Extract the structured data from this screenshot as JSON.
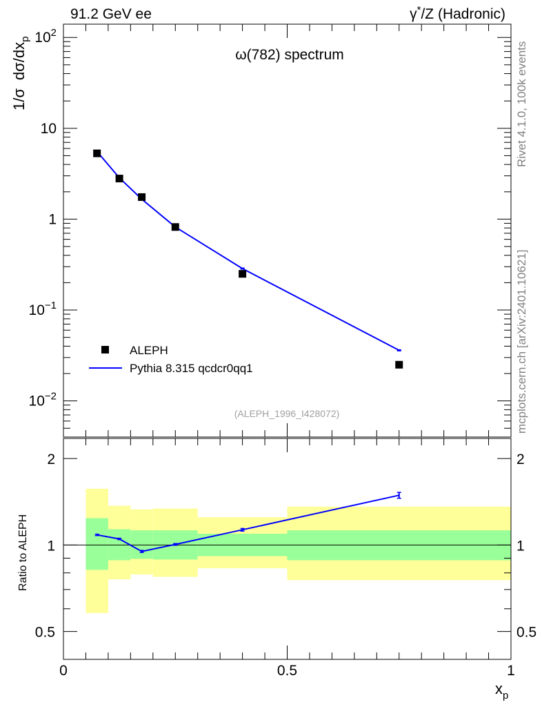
{
  "header": {
    "left": "91.2 GeV ee",
    "right_prefix": "γ",
    "right_sup": "*",
    "right_suffix": "/Z (Hadronic)"
  },
  "side_labels": {
    "rivet": "Rivet 4.1.0,  100k events",
    "mcplots": "mcplots.cern.ch [arXiv:2401.10621]"
  },
  "colors": {
    "mc": "#0000ff",
    "data": "#000000",
    "band_inner": "#99ff99",
    "band_outer": "#ffff99",
    "ref_text": "#a0a0a0"
  },
  "chart_data": [
    {
      "type": "scatter",
      "panel": "main",
      "title": "ω(782) spectrum",
      "ylabel": "1/σ dσ/dx_p",
      "ylabel_parts": {
        "a": "1/σ",
        "b": "dσ/dx",
        "sub": "p"
      },
      "xlabel": "",
      "yscale": "log",
      "ylim": [
        0.004,
        140
      ],
      "xlim": [
        0,
        1
      ],
      "yticks": [
        {
          "v": 100,
          "base": "10",
          "exp": "2"
        },
        {
          "v": 10,
          "base": "10",
          "exp": ""
        },
        {
          "v": 1,
          "base": "1",
          "exp": ""
        },
        {
          "v": 0.1,
          "base": "10",
          "exp": "−1"
        },
        {
          "v": 0.01,
          "base": "10",
          "exp": "−2"
        }
      ],
      "reference": "(ALEPH_1996_I428072)",
      "legend_position": "bottom-left",
      "series": [
        {
          "name": "ALEPH",
          "style": "markers",
          "x": [
            0.075,
            0.125,
            0.175,
            0.25,
            0.4,
            0.75
          ],
          "y": [
            5.3,
            2.8,
            1.75,
            0.82,
            0.25,
            0.025
          ]
        },
        {
          "name": "Pythia 8.315 qcdcr0qq1",
          "style": "line",
          "x": [
            0.075,
            0.125,
            0.175,
            0.25,
            0.4,
            0.75
          ],
          "y": [
            5.55,
            2.85,
            1.66,
            0.82,
            0.286,
            0.036
          ]
        }
      ]
    },
    {
      "type": "line",
      "panel": "ratio",
      "ylabel": "Ratio to ALEPH",
      "xlabel": "x_p",
      "xlabel_parts": {
        "a": "x",
        "sub": "p"
      },
      "ylim": [
        0.4,
        2.35
      ],
      "xlim": [
        0,
        1
      ],
      "yscale": "log",
      "yticks": [
        {
          "v": 2,
          "label": "2"
        },
        {
          "v": 1,
          "label": "1"
        },
        {
          "v": 0.5,
          "label": "0.5"
        }
      ],
      "xticks": [
        {
          "v": 0,
          "label": "0"
        },
        {
          "v": 0.5,
          "label": "0.5"
        },
        {
          "v": 1,
          "label": "1"
        }
      ],
      "bands": [
        {
          "x0": 0.05,
          "x1": 0.1,
          "inner": [
            0.82,
            1.24
          ],
          "outer": [
            0.58,
            1.57
          ]
        },
        {
          "x0": 0.1,
          "x1": 0.15,
          "inner": [
            0.885,
            1.135
          ],
          "outer": [
            0.76,
            1.37
          ]
        },
        {
          "x0": 0.15,
          "x1": 0.2,
          "inner": [
            0.895,
            1.125
          ],
          "outer": [
            0.79,
            1.33
          ]
        },
        {
          "x0": 0.2,
          "x1": 0.3,
          "inner": [
            0.89,
            1.125
          ],
          "outer": [
            0.775,
            1.34
          ]
        },
        {
          "x0": 0.3,
          "x1": 0.5,
          "inner": [
            0.915,
            1.095
          ],
          "outer": [
            0.83,
            1.25
          ]
        },
        {
          "x0": 0.5,
          "x1": 1.0,
          "inner": [
            0.885,
            1.125
          ],
          "outer": [
            0.755,
            1.36
          ]
        }
      ],
      "series": [
        {
          "name": "Pythia 8.315 qcdcr0qq1 / ALEPH",
          "x": [
            0.075,
            0.125,
            0.175,
            0.25,
            0.4,
            0.75
          ],
          "y": [
            1.085,
            1.05,
            0.95,
            1.005,
            1.13,
            1.49
          ],
          "err": [
            0.006,
            0.006,
            0.008,
            0.007,
            0.012,
            0.035
          ]
        }
      ]
    }
  ]
}
